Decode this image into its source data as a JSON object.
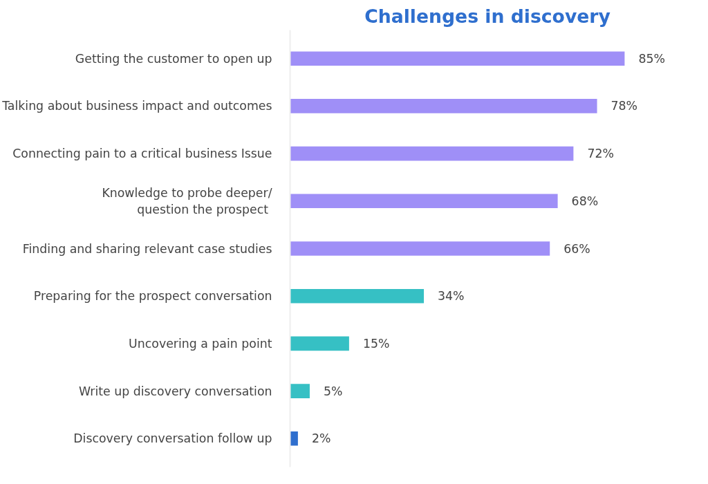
{
  "chart_data": {
    "type": "bar",
    "orientation": "horizontal",
    "title": "Challenges in discovery",
    "categories": [
      "Getting the customer to open up",
      "Talking about business impact and outcomes",
      "Connecting pain to a critical business Issue",
      "Knowledge to probe deeper/\nquestion the  prospect",
      "Finding and sharing relevant case studies",
      "Preparing for the prospect conversation",
      "Uncovering a pain point",
      "Write up discovery conversation",
      "Discovery conversation follow up"
    ],
    "values": [
      85,
      78,
      72,
      68,
      66,
      34,
      15,
      5,
      2
    ],
    "colors": [
      "#9f8ff7",
      "#9f8ff7",
      "#9f8ff7",
      "#9f8ff7",
      "#9f8ff7",
      "#36c0c4",
      "#36c0c4",
      "#36c0c4",
      "#2f6fce"
    ],
    "value_labels": [
      "85%",
      "78%",
      "72%",
      "68%",
      "66%",
      "34%",
      "15%",
      "5%",
      "2%"
    ],
    "tick_labels": "y",
    "grid": false
  }
}
